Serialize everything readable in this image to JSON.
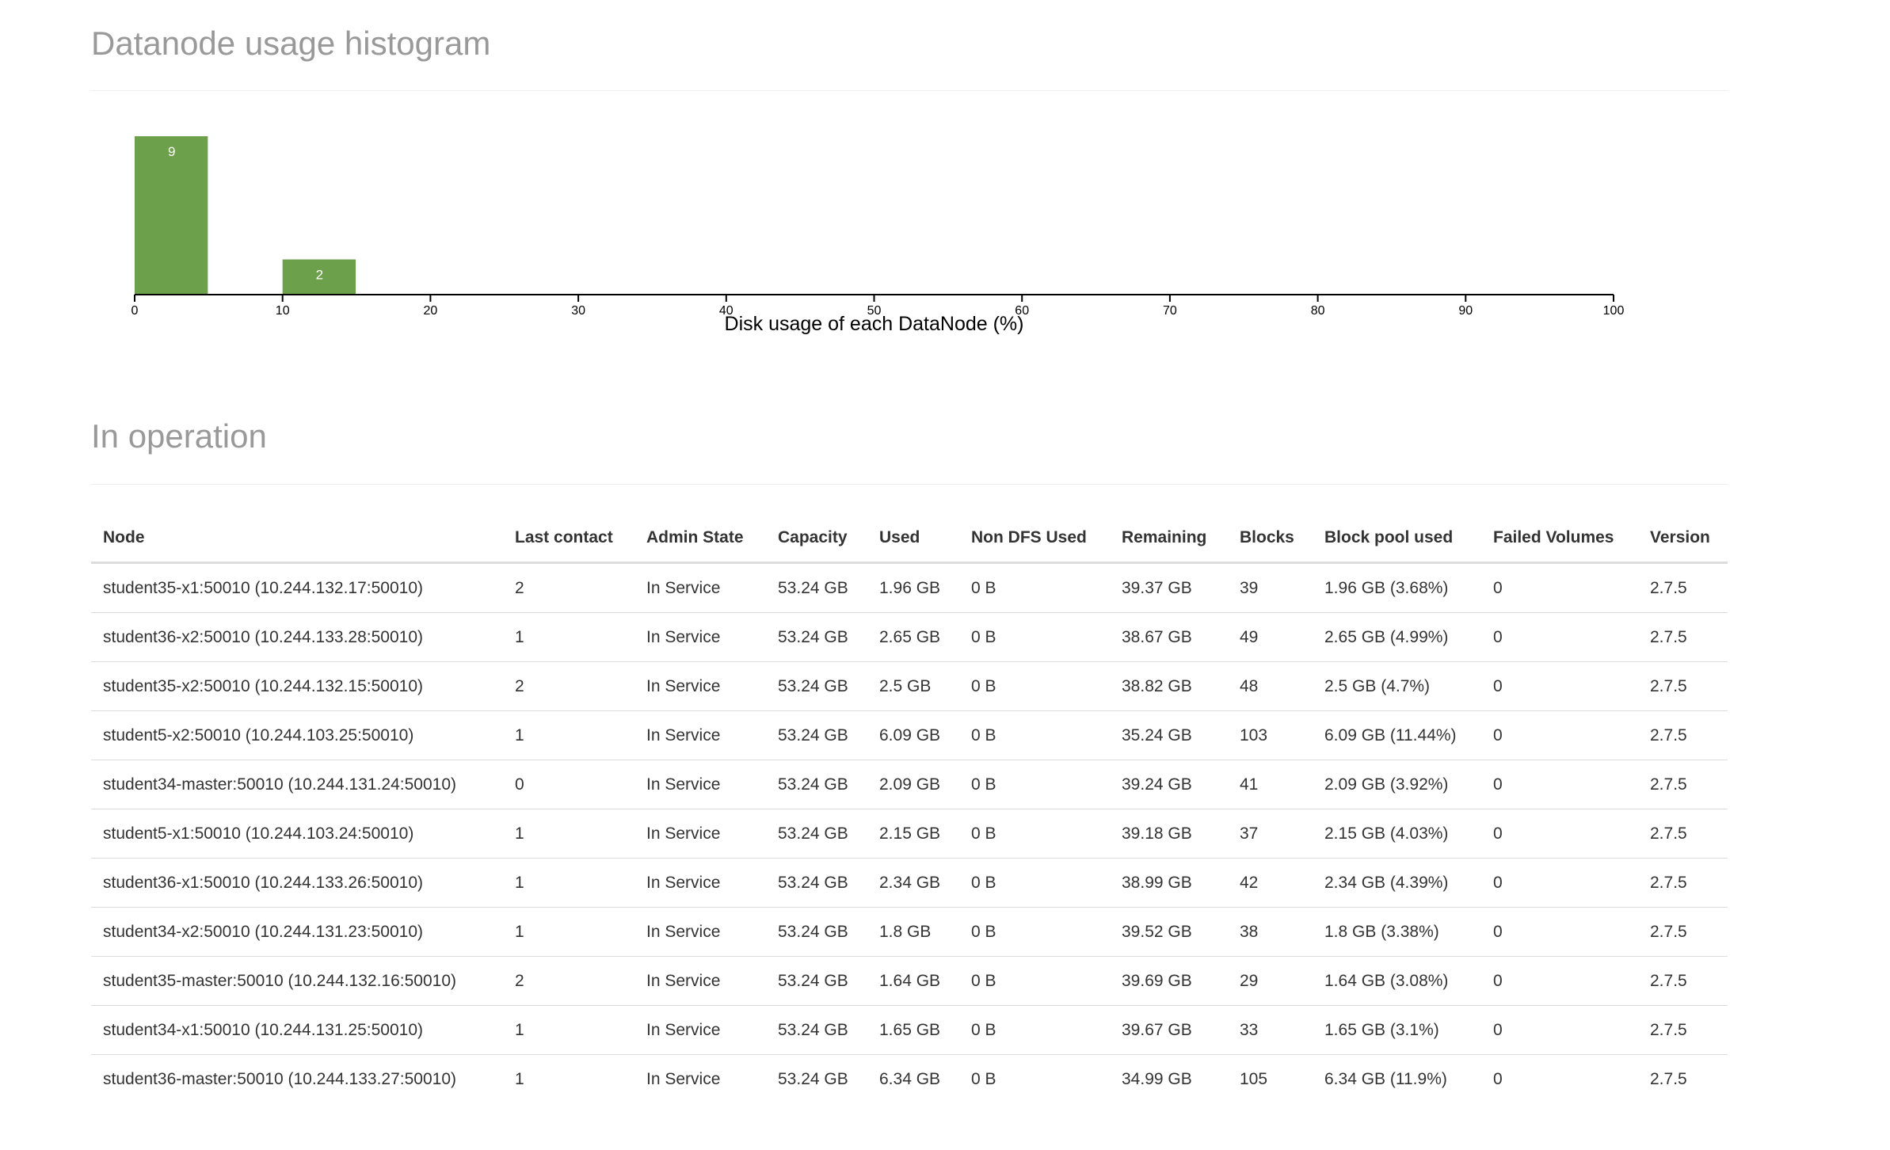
{
  "histogram_section": {
    "title": "Datanode usage histogram"
  },
  "chart_data": {
    "type": "bar",
    "title": "",
    "xlabel": "Disk usage of each DataNode (%)",
    "ylabel": "",
    "xlim": [
      0,
      100
    ],
    "x_ticks": [
      "0",
      "10",
      "20",
      "30",
      "40",
      "50",
      "60",
      "70",
      "80",
      "90",
      "100"
    ],
    "bins": [
      {
        "x0": 0,
        "x1": 5,
        "count": 9,
        "label": "9"
      },
      {
        "x0": 10,
        "x1": 15,
        "count": 2,
        "label": "2"
      }
    ],
    "bar_color": "#6ca04a",
    "grid": false,
    "legend": "none"
  },
  "operation_section": {
    "title": "In operation",
    "columns": [
      "Node",
      "Last contact",
      "Admin State",
      "Capacity",
      "Used",
      "Non DFS Used",
      "Remaining",
      "Blocks",
      "Block pool used",
      "Failed Volumes",
      "Version"
    ],
    "rows": [
      [
        "student35-x1:50010 (10.244.132.17:50010)",
        "2",
        "In Service",
        "53.24 GB",
        "1.96 GB",
        "0 B",
        "39.37 GB",
        "39",
        "1.96 GB (3.68%)",
        "0",
        "2.7.5"
      ],
      [
        "student36-x2:50010 (10.244.133.28:50010)",
        "1",
        "In Service",
        "53.24 GB",
        "2.65 GB",
        "0 B",
        "38.67 GB",
        "49",
        "2.65 GB (4.99%)",
        "0",
        "2.7.5"
      ],
      [
        "student35-x2:50010 (10.244.132.15:50010)",
        "2",
        "In Service",
        "53.24 GB",
        "2.5 GB",
        "0 B",
        "38.82 GB",
        "48",
        "2.5 GB (4.7%)",
        "0",
        "2.7.5"
      ],
      [
        "student5-x2:50010 (10.244.103.25:50010)",
        "1",
        "In Service",
        "53.24 GB",
        "6.09 GB",
        "0 B",
        "35.24 GB",
        "103",
        "6.09 GB (11.44%)",
        "0",
        "2.7.5"
      ],
      [
        "student34-master:50010 (10.244.131.24:50010)",
        "0",
        "In Service",
        "53.24 GB",
        "2.09 GB",
        "0 B",
        "39.24 GB",
        "41",
        "2.09 GB (3.92%)",
        "0",
        "2.7.5"
      ],
      [
        "student5-x1:50010 (10.244.103.24:50010)",
        "1",
        "In Service",
        "53.24 GB",
        "2.15 GB",
        "0 B",
        "39.18 GB",
        "37",
        "2.15 GB (4.03%)",
        "0",
        "2.7.5"
      ],
      [
        "student36-x1:50010 (10.244.133.26:50010)",
        "1",
        "In Service",
        "53.24 GB",
        "2.34 GB",
        "0 B",
        "38.99 GB",
        "42",
        "2.34 GB (4.39%)",
        "0",
        "2.7.5"
      ],
      [
        "student34-x2:50010 (10.244.131.23:50010)",
        "1",
        "In Service",
        "53.24 GB",
        "1.8 GB",
        "0 B",
        "39.52 GB",
        "38",
        "1.8 GB (3.38%)",
        "0",
        "2.7.5"
      ],
      [
        "student35-master:50010 (10.244.132.16:50010)",
        "2",
        "In Service",
        "53.24 GB",
        "1.64 GB",
        "0 B",
        "39.69 GB",
        "29",
        "1.64 GB (3.08%)",
        "0",
        "2.7.5"
      ],
      [
        "student34-x1:50010 (10.244.131.25:50010)",
        "1",
        "In Service",
        "53.24 GB",
        "1.65 GB",
        "0 B",
        "39.67 GB",
        "33",
        "1.65 GB (3.1%)",
        "0",
        "2.7.5"
      ],
      [
        "student36-master:50010 (10.244.133.27:50010)",
        "1",
        "In Service",
        "53.24 GB",
        "6.34 GB",
        "0 B",
        "34.99 GB",
        "105",
        "6.34 GB (11.9%)",
        "0",
        "2.7.5"
      ]
    ]
  }
}
